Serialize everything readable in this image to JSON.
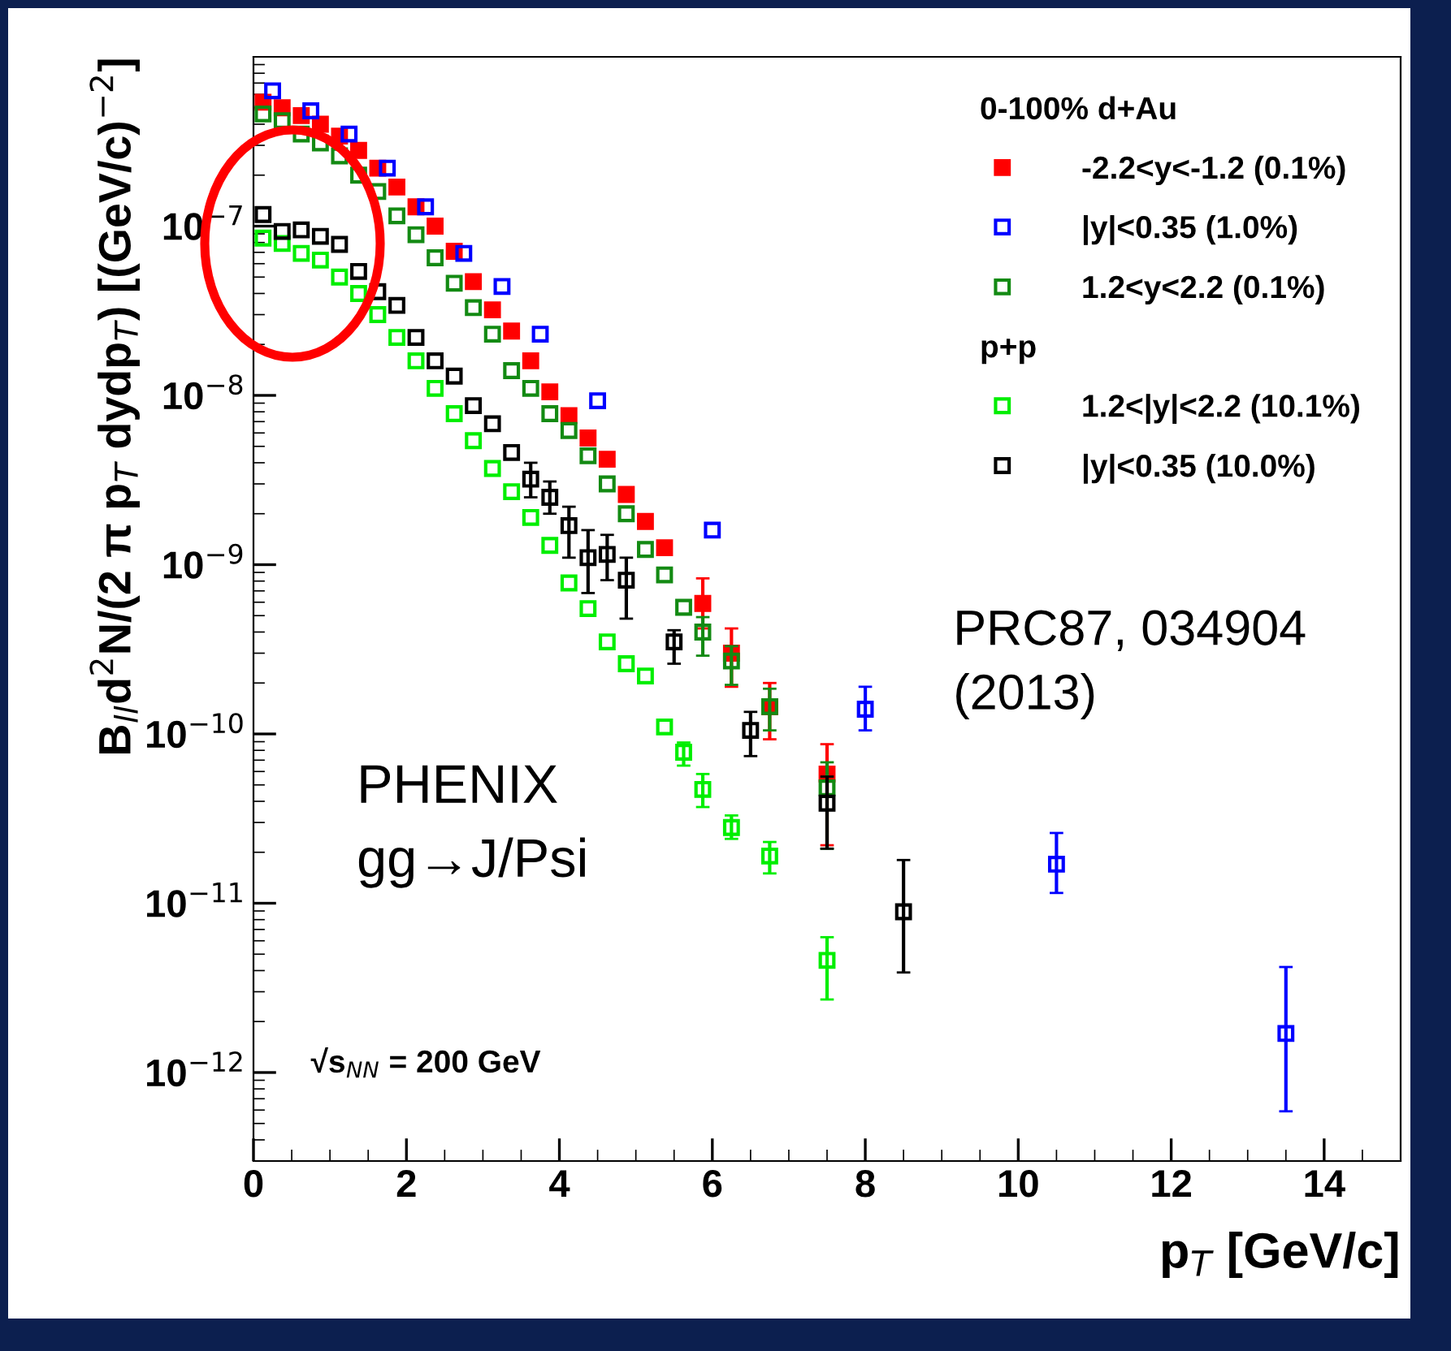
{
  "chart_data": {
    "type": "scatter",
    "xlabel": "p$_{T}$ [GeV/c]",
    "ylabel": "B$_{ll}$d$^{2}$N/(2 π p$_{T}$ dydp$_{T}$) [(GeV/c)$^{−2}$]",
    "legend_title": "0-100% d+Au",
    "legend": "top right",
    "marker": "square",
    "log": "y",
    "grid": false,
    "xlim": [
      0,
      15
    ],
    "xticks": [
      0,
      2,
      4,
      6,
      8,
      10,
      12,
      14
    ],
    "ylim": [
      3e-13,
      1e-06
    ],
    "yticks": [
      {
        "value": 1e-12,
        "label": "10$^{−12}$"
      },
      {
        "value": 1e-11,
        "label": "10$^{−11}$"
      },
      {
        "value": 1e-10,
        "label": "10$^{−10}$"
      },
      {
        "value": 1e-09,
        "label": "10$^{−9}$"
      },
      {
        "value": 1e-08,
        "label": "10$^{−8}$"
      },
      {
        "value": 1e-07,
        "label": "10$^{−7}$"
      }
    ],
    "annotations": [
      "p+p",
      "PHENIX\ngg→J/Psi",
      "PRC87, 034904\n(2013)",
      "√s$_{NN}$ = 200 GeV"
    ],
    "series": [
      {
        "name": "-2.2<y<-1.2 (0.1%)",
        "color": "#ff0000",
        "x": [
          0.125,
          0.375,
          0.625,
          0.875,
          1.125,
          1.375,
          1.625,
          1.875,
          2.125,
          2.375,
          2.625,
          2.875,
          3.125,
          3.375,
          3.625,
          3.875,
          4.125,
          4.375,
          4.625,
          4.875,
          5.125,
          5.375,
          5.875,
          6.25,
          6.75,
          7.5
        ],
        "values": [
          5.4e-07,
          5e-07,
          4.5e-07,
          4e-07,
          3.4e-07,
          2.8e-07,
          2.2e-07,
          1.7e-07,
          1.3e-07,
          1e-07,
          7.1e-08,
          4.7e-08,
          3.2e-08,
          2.4e-08,
          1.6e-08,
          1.05e-08,
          7.6e-09,
          5.6e-09,
          4.2e-09,
          2.6e-09,
          1.8e-09,
          1.26e-09,
          5.9e-10,
          3e-10,
          1.45e-10,
          5.8e-11
        ],
        "errors": [
          null,
          null,
          null,
          null,
          null,
          null,
          null,
          null,
          null,
          null,
          null,
          null,
          null,
          null,
          null,
          null,
          null,
          null,
          null,
          null,
          null,
          null,
          [
            4.2e-10,
            8.3e-10
          ],
          [
            1.9e-10,
            4.2e-10
          ],
          [
            9.3e-11,
            2e-10
          ],
          [
            2.2e-11,
            8.7e-11
          ]
        ]
      },
      {
        "name": "|y|<0.35 (1.0%)",
        "color": "#0000ff",
        "x": [
          0.25,
          0.75,
          1.25,
          1.75,
          2.25,
          2.75,
          3.25,
          3.75,
          4.5,
          6,
          8,
          10.5,
          13.5
        ],
        "values": [
          6.3e-07,
          4.8e-07,
          3.5e-07,
          2.2e-07,
          1.3e-07,
          6.9e-08,
          4.4e-08,
          2.3e-08,
          9.3e-09,
          1.6e-09,
          1.4e-10,
          1.7e-11,
          1.7e-12
        ],
        "errors": [
          null,
          null,
          null,
          null,
          null,
          null,
          null,
          null,
          null,
          null,
          [
            1.05e-10,
            1.9e-10
          ],
          [
            1.15e-11,
            2.6e-11
          ],
          [
            5.9e-13,
            4.2e-12
          ]
        ]
      },
      {
        "name": "1.2<y<2.2 (0.1%)",
        "color": "#138a13",
        "x": [
          0.125,
          0.375,
          0.625,
          0.875,
          1.125,
          1.375,
          1.625,
          1.875,
          2.125,
          2.375,
          2.625,
          2.875,
          3.125,
          3.375,
          3.625,
          3.875,
          4.125,
          4.375,
          4.625,
          4.875,
          5.125,
          5.375,
          5.625,
          5.875,
          6.25,
          6.75,
          7.5
        ],
        "values": [
          4.6e-07,
          4.2e-07,
          3.5e-07,
          3.1e-07,
          2.6e-07,
          2e-07,
          1.6e-07,
          1.15e-07,
          8.9e-08,
          6.5e-08,
          4.6e-08,
          3.3e-08,
          2.3e-08,
          1.4e-08,
          1.1e-08,
          7.8e-09,
          6.2e-09,
          4.4e-09,
          3e-09,
          2e-09,
          1.23e-09,
          8.7e-10,
          5.6e-10,
          4e-10,
          2.7e-10,
          1.45e-10,
          4.8e-11
        ],
        "errors": [
          null,
          null,
          null,
          null,
          null,
          null,
          null,
          null,
          null,
          null,
          null,
          null,
          null,
          null,
          null,
          null,
          null,
          null,
          null,
          null,
          null,
          null,
          null,
          [
            2.9e-10,
            4.9e-10
          ],
          [
            1.95e-10,
            3.3e-10
          ],
          [
            1.05e-10,
            1.85e-10
          ],
          [
            2.1e-11,
            6.8e-11
          ]
        ]
      },
      {
        "name": "1.2<|y|<2.2 (10.1%)",
        "color": "#00ee00",
        "x": [
          0.125,
          0.375,
          0.625,
          0.875,
          1.125,
          1.375,
          1.625,
          1.875,
          2.125,
          2.375,
          2.625,
          2.875,
          3.125,
          3.375,
          3.625,
          3.875,
          4.125,
          4.375,
          4.625,
          4.875,
          5.125,
          5.375,
          5.625,
          5.875,
          6.25,
          6.75,
          7.5
        ],
        "values": [
          8.5e-08,
          7.9e-08,
          6.9e-08,
          6.3e-08,
          5e-08,
          4e-08,
          3e-08,
          2.2e-08,
          1.6e-08,
          1.1e-08,
          7.8e-09,
          5.4e-09,
          3.7e-09,
          2.7e-09,
          1.9e-09,
          1.3e-09,
          7.8e-10,
          5.5e-10,
          3.5e-10,
          2.6e-10,
          2.2e-10,
          1.1e-10,
          7.8e-11,
          4.7e-11,
          2.8e-11,
          1.9e-11,
          4.6e-12
        ],
        "errors": [
          null,
          null,
          null,
          null,
          null,
          null,
          null,
          null,
          null,
          null,
          null,
          null,
          null,
          null,
          null,
          null,
          null,
          null,
          null,
          null,
          null,
          null,
          [
            6.5e-11,
            8.9e-11
          ],
          [
            3.7e-11,
            5.8e-11
          ],
          [
            2.4e-11,
            3.3e-11
          ],
          [
            1.5e-11,
            2.3e-11
          ],
          [
            2.7e-12,
            6.3e-12
          ]
        ]
      },
      {
        "name": "|y|<0.35 (10.0%)",
        "color": "#000000",
        "x": [
          0.125,
          0.375,
          0.625,
          0.875,
          1.125,
          1.375,
          1.625,
          1.875,
          2.125,
          2.375,
          2.625,
          2.875,
          3.125,
          3.375,
          3.625,
          3.875,
          4.125,
          4.375,
          4.625,
          4.875,
          5.5,
          6.5,
          7.5,
          8.5
        ],
        "values": [
          1.17e-07,
          9.3e-08,
          9.5e-08,
          8.7e-08,
          7.8e-08,
          5.4e-08,
          4.1e-08,
          3.4e-08,
          2.2e-08,
          1.6e-08,
          1.3e-08,
          8.7e-09,
          6.8e-09,
          4.6e-09,
          3.2e-09,
          2.5e-09,
          1.7e-09,
          1.1e-09,
          1.15e-09,
          8.1e-10,
          3.5e-10,
          1.05e-10,
          3.9e-11,
          8.9e-12
        ],
        "errors": [
          null,
          null,
          null,
          null,
          null,
          null,
          null,
          null,
          null,
          null,
          null,
          null,
          null,
          null,
          [
            2.5e-09,
            4e-09
          ],
          [
            2e-09,
            3.1e-09
          ],
          [
            1.1e-09,
            2.2e-09
          ],
          [
            6.8e-10,
            1.6e-09
          ],
          [
            8.1e-10,
            1.5e-09
          ],
          [
            4.8e-10,
            1.1e-09
          ],
          [
            2.6e-10,
            4.1e-10
          ],
          [
            7.4e-11,
            1.35e-10
          ],
          [
            2.1e-11,
            5.6e-11
          ],
          [
            3.9e-12,
            1.8e-11
          ]
        ]
      }
    ]
  }
}
